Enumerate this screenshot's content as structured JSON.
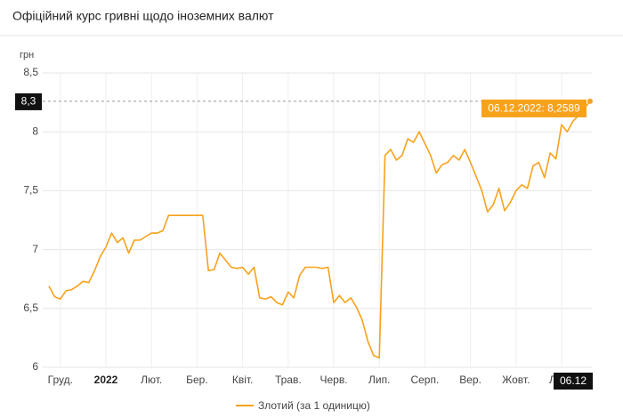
{
  "chart_data": {
    "type": "line",
    "title": "Офіційний курс гривні щодо іноземних валют",
    "y_label": "грн",
    "categories": [
      null,
      null,
      "Груд.",
      null,
      null,
      null,
      null,
      null,
      null,
      null,
      "2022",
      null,
      null,
      null,
      null,
      null,
      null,
      null,
      "Лют.",
      null,
      null,
      null,
      null,
      null,
      null,
      null,
      "Бер.",
      null,
      null,
      null,
      null,
      null,
      null,
      null,
      "Квіт.",
      null,
      null,
      null,
      null,
      null,
      null,
      null,
      "Трав.",
      null,
      null,
      null,
      null,
      null,
      null,
      null,
      "Черв.",
      null,
      null,
      null,
      null,
      null,
      null,
      null,
      "Лип.",
      null,
      null,
      null,
      null,
      null,
      null,
      null,
      "Серп.",
      null,
      null,
      null,
      null,
      null,
      null,
      null,
      "Вер.",
      null,
      null,
      null,
      null,
      null,
      null,
      null,
      "Жовт.",
      null,
      null,
      null,
      null,
      null,
      null,
      null,
      "Лист.",
      null,
      null,
      null,
      null,
      "06.12"
    ],
    "series": [
      {
        "name": "Злотий (за 1 одиницю)",
        "color": "#f7a21b",
        "values": [
          6.69,
          6.6,
          6.58,
          6.65,
          6.66,
          6.69,
          6.73,
          6.72,
          6.82,
          6.94,
          7.02,
          7.14,
          7.06,
          7.1,
          6.97,
          7.08,
          7.08,
          7.11,
          7.14,
          7.14,
          7.16,
          7.29,
          7.29,
          7.29,
          7.29,
          7.29,
          7.29,
          7.29,
          6.82,
          6.83,
          6.97,
          6.91,
          6.85,
          6.84,
          6.85,
          6.79,
          6.85,
          6.59,
          6.58,
          6.6,
          6.55,
          6.53,
          6.64,
          6.59,
          6.78,
          6.85,
          6.85,
          6.85,
          6.84,
          6.85,
          6.55,
          6.61,
          6.55,
          6.59,
          6.51,
          6.4,
          6.22,
          6.1,
          6.08,
          7.8,
          7.85,
          7.76,
          7.8,
          7.94,
          7.91,
          8.0,
          7.9,
          7.8,
          7.65,
          7.72,
          7.74,
          7.8,
          7.76,
          7.85,
          7.74,
          7.62,
          7.5,
          7.32,
          7.38,
          7.52,
          7.33,
          7.4,
          7.5,
          7.55,
          7.52,
          7.71,
          7.74,
          7.61,
          7.82,
          7.77,
          8.06,
          8.0,
          8.09,
          8.14,
          8.2,
          8.2589
        ]
      }
    ],
    "ylim": [
      6,
      8.5
    ],
    "yticks": [
      {
        "value": 6,
        "label": "6"
      },
      {
        "value": 6.5,
        "label": "6,5"
      },
      {
        "value": 7,
        "label": "7"
      },
      {
        "value": 7.5,
        "label": "7,5"
      },
      {
        "value": 8,
        "label": "8"
      },
      {
        "value": 8.5,
        "label": "8,5"
      }
    ],
    "grid": true,
    "tooltip": "06.12.2022: 8,2589",
    "crosshair_label": "8,3"
  }
}
